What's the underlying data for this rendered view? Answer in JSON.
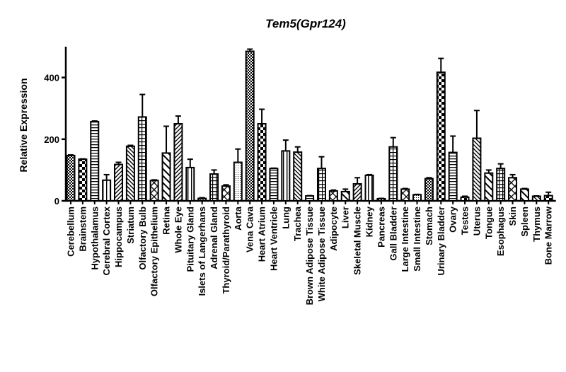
{
  "chart_data": {
    "type": "bar",
    "title": "Tem5(Gpr124)",
    "xlabel": "",
    "ylabel": "Relative Expression",
    "ylim": [
      0,
      500
    ],
    "yticks": [
      0,
      200,
      400
    ],
    "grid": false,
    "categories": [
      "Cerebellum",
      "Brainstem",
      "Hypothalamus",
      "Cerebral Cortex",
      "Hippocampus",
      "Striatum",
      "Olfactory Bulb",
      "Olfactory Epithelium",
      "Retina",
      "Whole Eye",
      "Pituitary Gland",
      "Islets of Langerhans",
      "Adrenal Gland",
      "Thyroid/Parathyroid",
      "Aorta",
      "Vena Cava",
      "Heart Atrium",
      "Heart Ventricle",
      "Lung",
      "Trachea",
      "Brown Adipose Tissue",
      "White Adipose Tissue",
      "Adipocyte",
      "Liver",
      "Skeletal Muscle",
      "Kidney",
      "Pancreas",
      "Gall Bladder",
      "Large Intestine",
      "Small Intestine",
      "Stomach",
      "Urinary Bladder",
      "Ovary",
      "Testes",
      "Uterus",
      "Tongue",
      "Esophagus",
      "Skin",
      "Spleen",
      "Thymus",
      "Bone Marrow"
    ],
    "values": [
      147,
      135,
      257,
      67,
      118,
      177,
      272,
      66,
      155,
      250,
      108,
      8,
      87,
      48,
      125,
      485,
      250,
      105,
      162,
      158,
      16,
      105,
      32,
      30,
      55,
      83,
      7,
      175,
      38,
      20,
      72,
      417,
      157,
      12,
      203,
      90,
      105,
      75,
      38,
      15,
      17
    ],
    "error_upper": [
      149,
      136,
      259,
      85,
      125,
      180,
      345,
      68,
      242,
      275,
      135,
      10,
      100,
      52,
      168,
      492,
      297,
      106,
      197,
      175,
      17,
      143,
      35,
      38,
      75,
      85,
      8,
      205,
      40,
      21,
      75,
      462,
      210,
      15,
      293,
      100,
      120,
      85,
      40,
      16,
      28
    ]
  }
}
